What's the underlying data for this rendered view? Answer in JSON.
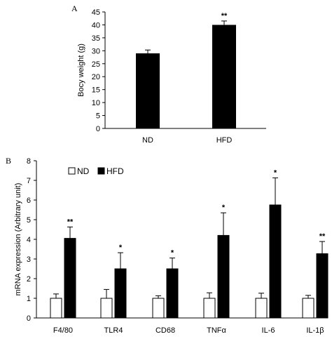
{
  "chart_data": [
    {
      "panel_label": "A",
      "type": "bar",
      "categories": [
        "ND",
        "HFD"
      ],
      "values": [
        29,
        40
      ],
      "errors": [
        1.3,
        1.5
      ],
      "significance": [
        "",
        "**"
      ],
      "bar_color": "#000000",
      "ylabel": "Bocy weight (g)",
      "ylim": [
        0,
        45
      ],
      "yticks": [
        "0",
        "5",
        "10",
        "15",
        "20",
        "25",
        "30",
        "35",
        "40",
        "45"
      ]
    },
    {
      "panel_label": "B",
      "type": "bar",
      "categories": [
        "F4/80",
        "TLR4",
        "CD68",
        "TNFα",
        "IL-6",
        "IL-1β"
      ],
      "series": [
        {
          "name": "ND",
          "values": [
            1.0,
            1.0,
            1.0,
            1.0,
            1.0,
            1.0
          ],
          "errors": [
            0.22,
            0.45,
            0.13,
            0.28,
            0.26,
            0.15
          ],
          "color": "#ffffff"
        },
        {
          "name": "HFD",
          "values": [
            4.05,
            2.5,
            2.5,
            4.2,
            5.75,
            3.27
          ],
          "errors": [
            0.58,
            0.82,
            0.55,
            1.15,
            1.38,
            0.62
          ],
          "color": "#000000"
        }
      ],
      "significance": [
        "**",
        "*",
        "*",
        "*",
        "*",
        "**"
      ],
      "ylabel": "mRNA expression (Arbitrary unit)",
      "ylim": [
        0,
        8
      ],
      "yticks": [
        "0",
        "1",
        "2",
        "3",
        "4",
        "5",
        "6",
        "7",
        "8"
      ],
      "legend_position": "top-left"
    }
  ]
}
